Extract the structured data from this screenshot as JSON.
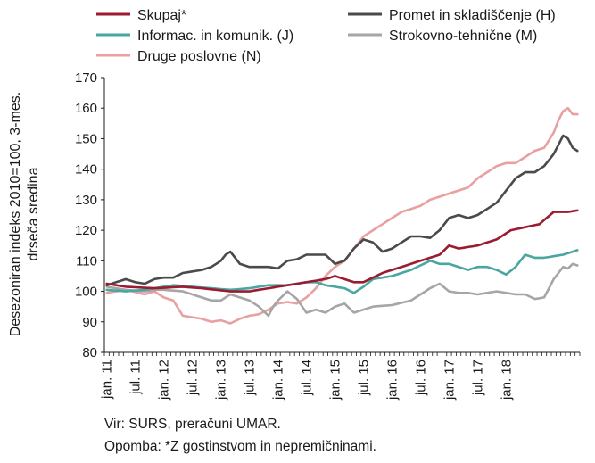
{
  "chart_data": {
    "type": "line",
    "title": "",
    "ylabel_lines": [
      "Desezoniran indeks 2010=100, 3-mes.",
      "drseča sredina"
    ],
    "xlabel": "",
    "ylim": [
      80,
      170
    ],
    "yticks": [
      80,
      90,
      100,
      110,
      120,
      130,
      140,
      150,
      160,
      170
    ],
    "grid": false,
    "legend": "top",
    "x_range": [
      "jan. 11",
      "apr. 18"
    ],
    "x_tick_labels": [
      "jan. 11",
      "jul. 11",
      "jan. 12",
      "jul. 12",
      "jan. 13",
      "jul. 13",
      "jan. 14",
      "jul. 14",
      "jan. 15",
      "jul. 15",
      "jan. 16",
      "jul. 16",
      "jan. 17",
      "jul. 17",
      "jan. 18"
    ],
    "series": [
      {
        "name": "Skupaj*",
        "color": "#9b1b30",
        "anchors": [
          [
            0,
            102.5
          ],
          [
            4,
            101.5
          ],
          [
            10,
            101
          ],
          [
            16,
            101.5
          ],
          [
            20,
            101
          ],
          [
            26,
            100
          ],
          [
            30,
            100
          ],
          [
            34,
            101
          ],
          [
            38,
            102
          ],
          [
            42,
            103
          ],
          [
            46,
            104
          ],
          [
            48,
            105
          ],
          [
            52,
            103
          ],
          [
            54,
            103
          ],
          [
            58,
            106
          ],
          [
            62,
            108
          ],
          [
            66,
            110
          ],
          [
            70,
            112
          ],
          [
            72,
            115
          ],
          [
            74,
            114
          ],
          [
            78,
            115
          ],
          [
            82,
            117
          ],
          [
            85,
            120
          ],
          [
            88,
            121
          ],
          [
            91,
            122
          ],
          [
            94,
            126
          ],
          [
            97,
            126
          ],
          [
            99,
            126.5
          ]
        ]
      },
      {
        "name": "Promet in skladiščenje (H)",
        "color": "#4a4a4a",
        "anchors": [
          [
            0,
            102
          ],
          [
            2,
            103
          ],
          [
            4,
            104
          ],
          [
            6,
            103
          ],
          [
            8,
            102.5
          ],
          [
            10,
            104
          ],
          [
            12,
            104.5
          ],
          [
            14,
            104.5
          ],
          [
            16,
            106
          ],
          [
            18,
            106.5
          ],
          [
            20,
            107
          ],
          [
            22,
            108
          ],
          [
            24,
            110
          ],
          [
            25,
            112
          ],
          [
            26,
            113
          ],
          [
            27,
            111
          ],
          [
            28,
            109
          ],
          [
            30,
            108
          ],
          [
            32,
            108
          ],
          [
            34,
            108
          ],
          [
            36,
            107.5
          ],
          [
            38,
            110
          ],
          [
            40,
            110.5
          ],
          [
            42,
            112
          ],
          [
            44,
            112
          ],
          [
            46,
            112
          ],
          [
            48,
            109
          ],
          [
            50,
            110
          ],
          [
            52,
            114
          ],
          [
            54,
            117
          ],
          [
            56,
            116
          ],
          [
            58,
            113
          ],
          [
            60,
            114
          ],
          [
            62,
            116
          ],
          [
            64,
            118
          ],
          [
            66,
            118
          ],
          [
            68,
            117.5
          ],
          [
            70,
            120
          ],
          [
            72,
            124
          ],
          [
            74,
            125
          ],
          [
            76,
            124
          ],
          [
            78,
            125
          ],
          [
            80,
            127
          ],
          [
            82,
            129
          ],
          [
            84,
            133
          ],
          [
            86,
            137
          ],
          [
            88,
            139
          ],
          [
            90,
            139
          ],
          [
            92,
            141
          ],
          [
            94,
            145
          ],
          [
            95,
            148
          ],
          [
            96,
            151
          ],
          [
            97,
            150
          ],
          [
            98,
            147
          ],
          [
            99,
            146
          ]
        ]
      },
      {
        "name": "Informac. in komunik. (J)",
        "color": "#4aa6a0",
        "anchors": [
          [
            0,
            100.5
          ],
          [
            4,
            100
          ],
          [
            8,
            100.5
          ],
          [
            10,
            101
          ],
          [
            14,
            102
          ],
          [
            18,
            101.5
          ],
          [
            22,
            101
          ],
          [
            26,
            100.5
          ],
          [
            30,
            101
          ],
          [
            34,
            102
          ],
          [
            38,
            102
          ],
          [
            42,
            103
          ],
          [
            44,
            103
          ],
          [
            46,
            102
          ],
          [
            50,
            101
          ],
          [
            52,
            99.5
          ],
          [
            54,
            101.5
          ],
          [
            56,
            104
          ],
          [
            60,
            105
          ],
          [
            64,
            107
          ],
          [
            68,
            110
          ],
          [
            70,
            109
          ],
          [
            72,
            109
          ],
          [
            74,
            108
          ],
          [
            76,
            107
          ],
          [
            78,
            108
          ],
          [
            80,
            108
          ],
          [
            82,
            107
          ],
          [
            84,
            105.5
          ],
          [
            86,
            108
          ],
          [
            88,
            112
          ],
          [
            90,
            111
          ],
          [
            92,
            111
          ],
          [
            96,
            112
          ],
          [
            99,
            113.5
          ]
        ]
      },
      {
        "name": "Strokovno-tehnične (M)",
        "color": "#a6a6a6",
        "anchors": [
          [
            0,
            101.5
          ],
          [
            4,
            100.5
          ],
          [
            8,
            100
          ],
          [
            10,
            100.5
          ],
          [
            12,
            100.5
          ],
          [
            16,
            100
          ],
          [
            18,
            99
          ],
          [
            22,
            97
          ],
          [
            24,
            97
          ],
          [
            26,
            99
          ],
          [
            28,
            98
          ],
          [
            30,
            97
          ],
          [
            32,
            95
          ],
          [
            34,
            92
          ],
          [
            35,
            95
          ],
          [
            36,
            97
          ],
          [
            38,
            100
          ],
          [
            40,
            97.5
          ],
          [
            42,
            93
          ],
          [
            44,
            94
          ],
          [
            46,
            93
          ],
          [
            48,
            95
          ],
          [
            50,
            96
          ],
          [
            52,
            93
          ],
          [
            56,
            95
          ],
          [
            60,
            95.5
          ],
          [
            64,
            97
          ],
          [
            66,
            99
          ],
          [
            68,
            101
          ],
          [
            70,
            102.5
          ],
          [
            72,
            100
          ],
          [
            74,
            99.5
          ],
          [
            76,
            99.5
          ],
          [
            78,
            99
          ],
          [
            82,
            100
          ],
          [
            84,
            99.5
          ],
          [
            86,
            99
          ],
          [
            88,
            99
          ],
          [
            90,
            97.5
          ],
          [
            92,
            98
          ],
          [
            94,
            104
          ],
          [
            96,
            108
          ],
          [
            97,
            107.5
          ],
          [
            98,
            109
          ],
          [
            99,
            108.5
          ]
        ]
      },
      {
        "name": "Druge poslovne (N)",
        "color": "#e8a0a0",
        "anchors": [
          [
            0,
            99.5
          ],
          [
            4,
            100.5
          ],
          [
            8,
            99
          ],
          [
            10,
            100
          ],
          [
            12,
            98
          ],
          [
            14,
            97
          ],
          [
            16,
            92
          ],
          [
            18,
            91.5
          ],
          [
            20,
            91
          ],
          [
            22,
            90
          ],
          [
            24,
            90.5
          ],
          [
            26,
            89.5
          ],
          [
            28,
            91
          ],
          [
            30,
            92
          ],
          [
            32,
            92.5
          ],
          [
            34,
            94
          ],
          [
            36,
            96
          ],
          [
            38,
            96.5
          ],
          [
            40,
            96
          ],
          [
            42,
            98
          ],
          [
            44,
            101
          ],
          [
            46,
            105
          ],
          [
            48,
            108
          ],
          [
            50,
            110
          ],
          [
            52,
            114
          ],
          [
            54,
            118
          ],
          [
            56,
            120
          ],
          [
            58,
            122
          ],
          [
            60,
            124
          ],
          [
            62,
            126
          ],
          [
            64,
            127
          ],
          [
            66,
            128
          ],
          [
            68,
            130
          ],
          [
            70,
            131
          ],
          [
            72,
            132
          ],
          [
            74,
            133
          ],
          [
            76,
            134
          ],
          [
            78,
            137
          ],
          [
            80,
            139
          ],
          [
            82,
            141
          ],
          [
            84,
            142
          ],
          [
            86,
            142
          ],
          [
            88,
            144
          ],
          [
            90,
            146
          ],
          [
            92,
            147
          ],
          [
            94,
            152
          ],
          [
            95,
            156
          ],
          [
            96,
            159
          ],
          [
            97,
            160
          ],
          [
            98,
            158
          ],
          [
            99,
            158
          ]
        ]
      }
    ]
  },
  "notes": {
    "source": "Vir: SURS, preračuni UMAR.",
    "footnote": "Opomba: *Z gostinstvom in nepremičninami."
  }
}
